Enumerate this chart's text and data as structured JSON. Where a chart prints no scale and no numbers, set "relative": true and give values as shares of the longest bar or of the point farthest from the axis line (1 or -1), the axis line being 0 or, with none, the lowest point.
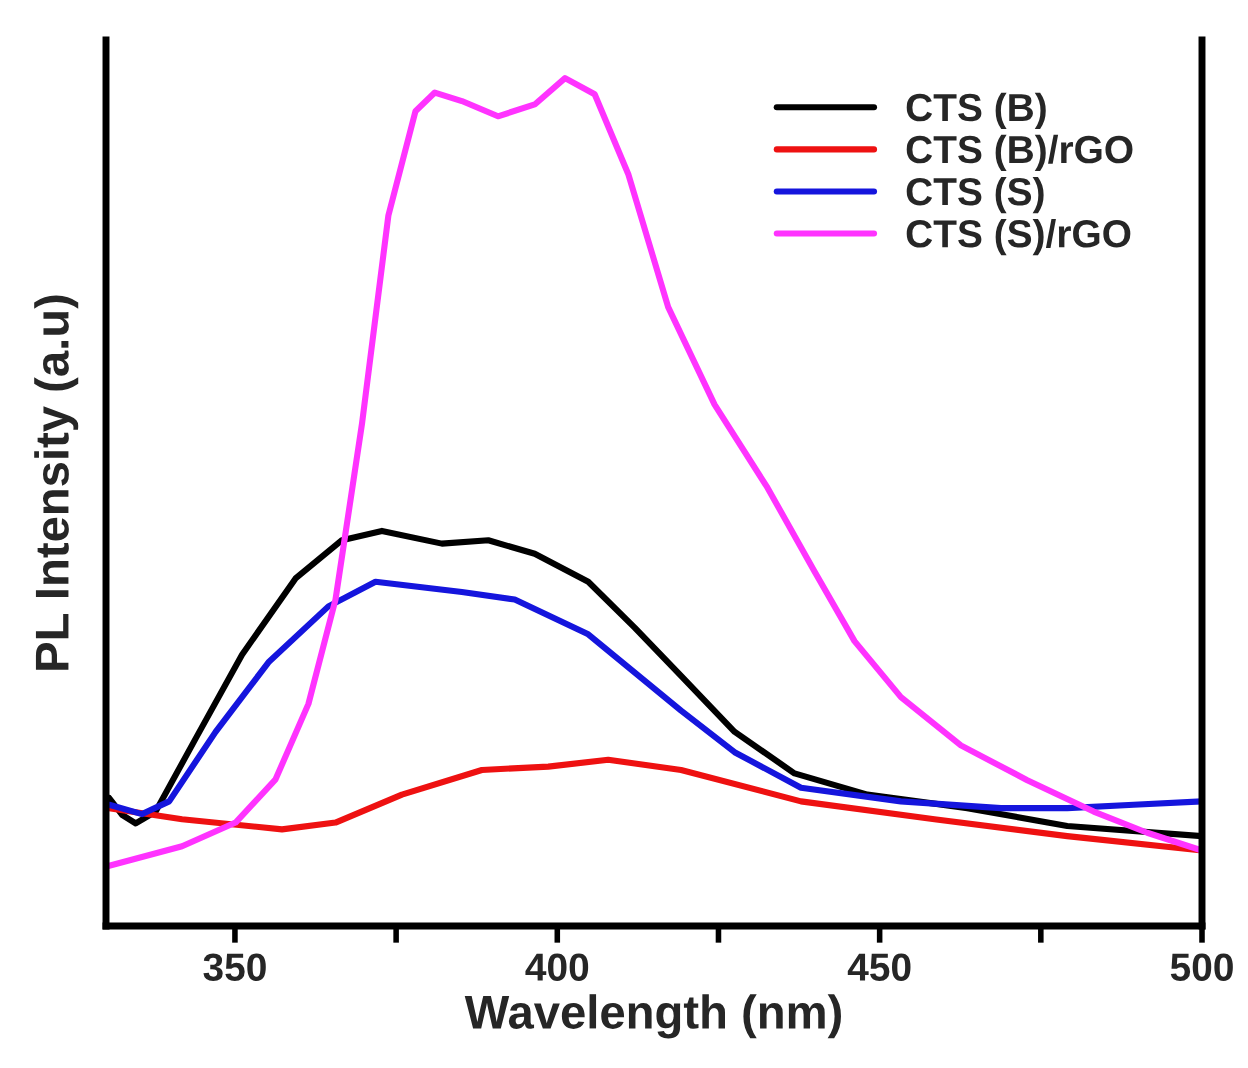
{
  "chart_data": {
    "type": "line",
    "relative": true,
    "xlabel": "Wavelength (nm)",
    "ylabel": "PL Intensity (a.u)",
    "xlim": [
      330,
      500
    ],
    "xticks": [
      350,
      {
        "value": 375,
        "label": null
      },
      400,
      {
        "value": 425,
        "label": null
      },
      450,
      {
        "value": 475,
        "label": null
      },
      500
    ],
    "legend": "top right",
    "grid": false,
    "line_style": "solid",
    "marker": "none",
    "series": [
      {
        "name": "CTS (B)",
        "color": "#000000",
        "x": [
          330.5,
          332.5,
          334.6,
          337.7,
          343.9,
          351.1,
          359.4,
          366.6,
          372.8,
          382.1,
          389.3,
          396.5,
          404.8,
          412,
          419.2,
          427.5,
          436.8,
          448.1,
          463.6,
          479.1,
          500
        ],
        "values": [
          0.151,
          0.131,
          0.121,
          0.135,
          0.221,
          0.32,
          0.41,
          0.455,
          0.466,
          0.451,
          0.455,
          0.439,
          0.406,
          0.352,
          0.295,
          0.229,
          0.18,
          0.155,
          0.139,
          0.118,
          0.106
        ]
      },
      {
        "name": "CTS (B)/rGO",
        "color": "#ee1111",
        "x": [
          330.5,
          341.8,
          357.3,
          365.6,
          375.9,
          388.3,
          398.6,
          407.9,
          419.2,
          437.8,
          458.5,
          479.1,
          500
        ],
        "values": [
          0.139,
          0.126,
          0.114,
          0.122,
          0.155,
          0.184,
          0.188,
          0.196,
          0.184,
          0.147,
          0.126,
          0.106,
          0.089
        ]
      },
      {
        "name": "CTS (S)",
        "color": "#1515dd",
        "x": [
          330.5,
          335.6,
          339.8,
          347,
          355.2,
          364.5,
          371.8,
          385.2,
          393.4,
          404.8,
          419.2,
          427.5,
          437.8,
          453.3,
          468.8,
          479.1,
          489.4,
          500
        ],
        "values": [
          0.143,
          0.132,
          0.147,
          0.229,
          0.311,
          0.377,
          0.406,
          0.394,
          0.385,
          0.344,
          0.254,
          0.205,
          0.163,
          0.147,
          0.139,
          0.139,
          0.143,
          0.147
        ]
      },
      {
        "name": "CTS (S)/rGO",
        "color": "#ff33ff",
        "x": [
          330.5,
          341.8,
          350.1,
          356.3,
          361.4,
          365.6,
          369.7,
          373.8,
          378,
          381,
          385.2,
          390.8,
          396.5,
          401.2,
          405.8,
          411,
          417.2,
          424.4,
          432.6,
          439.9,
          446.1,
          453.3,
          462.6,
          472.9,
          483.2,
          491.5,
          500
        ],
        "values": [
          0.071,
          0.094,
          0.122,
          0.173,
          0.262,
          0.385,
          0.592,
          0.838,
          0.961,
          0.983,
          0.973,
          0.955,
          0.969,
          1,
          0.981,
          0.887,
          0.73,
          0.615,
          0.517,
          0.418,
          0.336,
          0.27,
          0.213,
          0.172,
          0.135,
          0.11,
          0.089
        ]
      }
    ]
  }
}
